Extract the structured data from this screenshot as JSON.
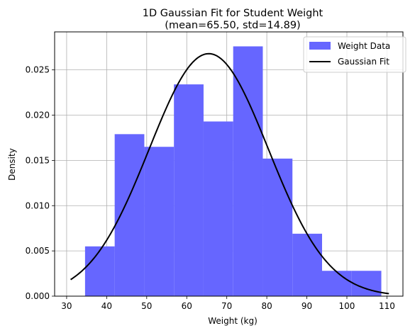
{
  "chart_data": {
    "type": "histogram",
    "title_line1": "1D Gaussian Fit for Student Weight",
    "title_line2": "(mean=65.50, std=14.89)",
    "xlabel": "Weight (kg)",
    "ylabel": "Density",
    "xlim": [
      27,
      114
    ],
    "ylim": [
      0,
      0.0292
    ],
    "xticks": [
      30,
      40,
      50,
      60,
      70,
      80,
      90,
      100,
      110
    ],
    "yticks": [
      0.0,
      0.005,
      0.01,
      0.015,
      0.02,
      0.025
    ],
    "ytick_labels": [
      "0.000",
      "0.005",
      "0.010",
      "0.015",
      "0.020",
      "0.025"
    ],
    "grid": true,
    "legend_position": "top-right",
    "bins": [
      {
        "x0": 34.6,
        "x1": 42.0,
        "density": 0.0055
      },
      {
        "x0": 42.0,
        "x1": 49.4,
        "density": 0.0179
      },
      {
        "x0": 49.4,
        "x1": 56.8,
        "density": 0.0165
      },
      {
        "x0": 56.8,
        "x1": 64.2,
        "density": 0.0234
      },
      {
        "x0": 64.2,
        "x1": 71.6,
        "density": 0.0193
      },
      {
        "x0": 71.6,
        "x1": 79.0,
        "density": 0.0276
      },
      {
        "x0": 79.0,
        "x1": 86.4,
        "density": 0.0152
      },
      {
        "x0": 86.4,
        "x1": 93.8,
        "density": 0.0069
      },
      {
        "x0": 93.8,
        "x1": 101.2,
        "density": 0.0028
      },
      {
        "x0": 101.2,
        "x1": 108.6,
        "density": 0.0028
      }
    ],
    "gaussian": {
      "mean": 65.5,
      "std": 14.89,
      "x_range": [
        31,
        110.5
      ]
    },
    "series": [
      {
        "name": "Weight Data",
        "kind": "histogram",
        "color": "#6666ff"
      },
      {
        "name": "Gaussian Fit",
        "kind": "line",
        "color": "#000000"
      }
    ]
  }
}
